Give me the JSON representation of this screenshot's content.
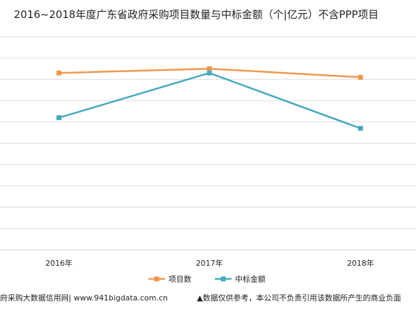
{
  "chart_data": {
    "type": "line",
    "title": "2016~2018年度广东省政府采购项目数量与中标金额（个|亿元）不含PPP项目",
    "categories": [
      "2016年",
      "2017年",
      "2018年"
    ],
    "series": [
      {
        "name": "项目数",
        "color": "#f0974a",
        "values": [
          83,
          85,
          81
        ]
      },
      {
        "name": "中标金额",
        "color": "#45a9bd",
        "values": [
          62,
          83,
          57
        ]
      }
    ],
    "ylim": [
      0,
      100
    ],
    "grid": true,
    "legend_position": "bottom-center",
    "xlabel": "",
    "ylabel": ""
  },
  "footer": {
    "source": "府采购大数据信用网| www.941bigdata.com.cn",
    "disclaimer": "▲数据仅供参考，本公司不负责引用该数据所产生的商业负面"
  }
}
